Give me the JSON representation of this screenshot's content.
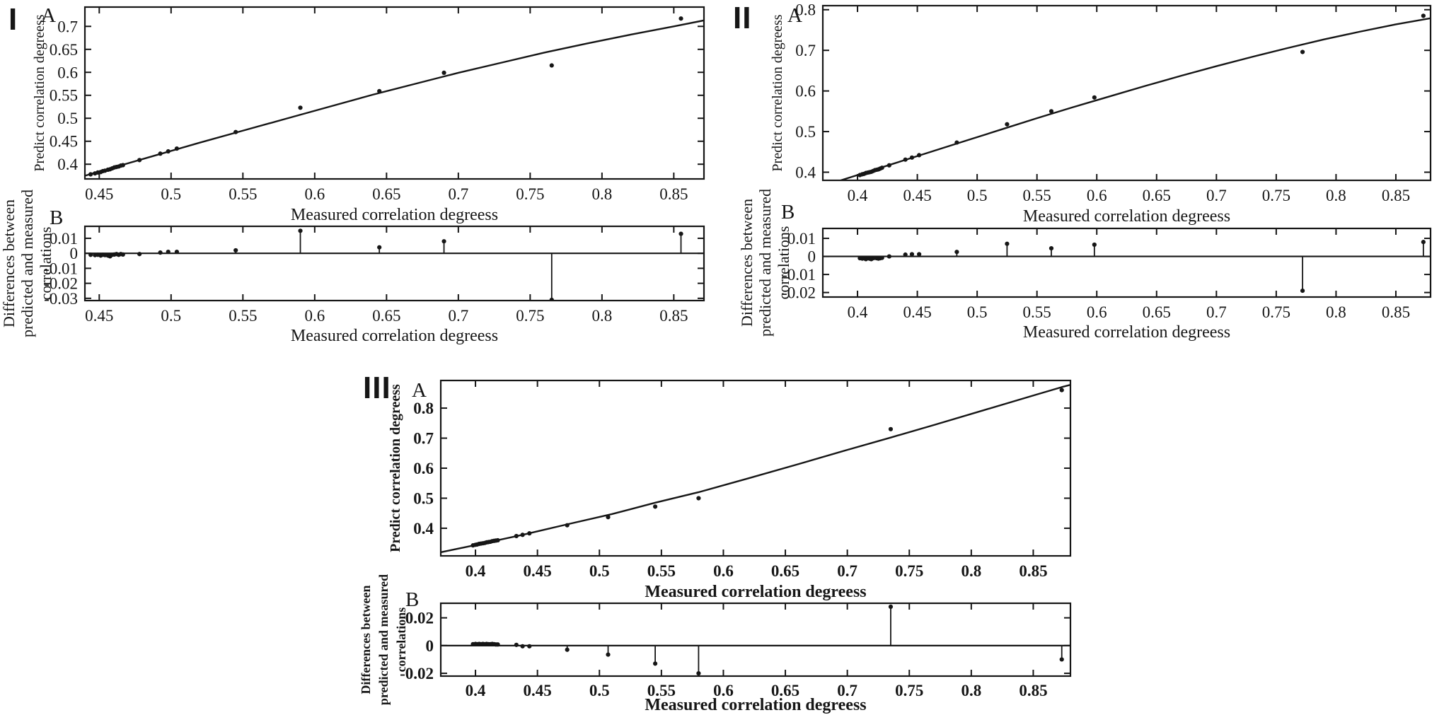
{
  "colors": {
    "background": "#ffffff",
    "ink": "#161616"
  },
  "panels": [
    {
      "numeral": "I",
      "subpanels": [
        {
          "label": "A"
        },
        {
          "label": "B"
        }
      ]
    },
    {
      "numeral": "II",
      "subpanels": [
        {
          "label": "A"
        },
        {
          "label": "B"
        }
      ]
    },
    {
      "numeral": "III",
      "subpanels": [
        {
          "label": "A"
        },
        {
          "label": "B"
        }
      ]
    }
  ],
  "chart_data": [
    {
      "panel": "I",
      "subpanel": "A",
      "type": "scatter",
      "render": "scatter_line",
      "title": "",
      "xlabel": "Measured correlation degreess",
      "ylabel": "Predict correlation degreess",
      "xlim": [
        0.44,
        0.871
      ],
      "ylim": [
        0.368,
        0.742
      ],
      "xticks": [
        0.45,
        0.5,
        0.55,
        0.6,
        0.65,
        0.7,
        0.75,
        0.8,
        0.85
      ],
      "yticks": [
        0.4,
        0.45,
        0.5,
        0.55,
        0.6,
        0.65,
        0.7
      ],
      "grid": false,
      "legend": "none",
      "fit_curve": [
        [
          0.44,
          0.375
        ],
        [
          0.46,
          0.393
        ],
        [
          0.49,
          0.42
        ],
        [
          0.52,
          0.447
        ],
        [
          0.55,
          0.473
        ],
        [
          0.58,
          0.499
        ],
        [
          0.61,
          0.525
        ],
        [
          0.64,
          0.551
        ],
        [
          0.67,
          0.575
        ],
        [
          0.7,
          0.599
        ],
        [
          0.73,
          0.621
        ],
        [
          0.76,
          0.643
        ],
        [
          0.79,
          0.663
        ],
        [
          0.82,
          0.682
        ],
        [
          0.85,
          0.7
        ],
        [
          0.871,
          0.713
        ]
      ],
      "points": [
        [
          0.444,
          0.378
        ],
        [
          0.447,
          0.38
        ],
        [
          0.449,
          0.382
        ],
        [
          0.451,
          0.383
        ],
        [
          0.4525,
          0.385
        ],
        [
          0.454,
          0.386
        ],
        [
          0.456,
          0.388
        ],
        [
          0.4575,
          0.389
        ],
        [
          0.459,
          0.391
        ],
        [
          0.4605,
          0.393
        ],
        [
          0.462,
          0.394
        ],
        [
          0.4635,
          0.395
        ],
        [
          0.465,
          0.397
        ],
        [
          0.4665,
          0.398
        ],
        [
          0.478,
          0.409
        ],
        [
          0.4925,
          0.423
        ],
        [
          0.498,
          0.428
        ],
        [
          0.504,
          0.434
        ],
        [
          0.545,
          0.47
        ],
        [
          0.59,
          0.523
        ],
        [
          0.645,
          0.559
        ],
        [
          0.69,
          0.599
        ],
        [
          0.765,
          0.615
        ],
        [
          0.855,
          0.717
        ]
      ]
    },
    {
      "panel": "I",
      "subpanel": "B",
      "type": "scatter",
      "render": "stem",
      "title": "",
      "xlabel": "Measured correlation degreess",
      "ylabel_lines": [
        "Differences between",
        "predicted and measured",
        "correlations"
      ],
      "xlim": [
        0.44,
        0.871
      ],
      "ylim": [
        -0.0315,
        0.018
      ],
      "xticks": [
        0.45,
        0.5,
        0.55,
        0.6,
        0.65,
        0.7,
        0.75,
        0.8,
        0.85
      ],
      "yticks": [
        0.01,
        0,
        -0.01,
        -0.02,
        -0.03
      ],
      "grid": false,
      "legend": "none",
      "points": [
        [
          0.444,
          -0.001
        ],
        [
          0.447,
          -0.0012
        ],
        [
          0.449,
          -0.001
        ],
        [
          0.451,
          -0.0015
        ],
        [
          0.4525,
          -0.001
        ],
        [
          0.454,
          -0.0012
        ],
        [
          0.456,
          -0.0015
        ],
        [
          0.4575,
          -0.002
        ],
        [
          0.459,
          -0.001
        ],
        [
          0.4605,
          -0.0008
        ],
        [
          0.462,
          -0.0005
        ],
        [
          0.4635,
          -0.001
        ],
        [
          0.465,
          -0.0005
        ],
        [
          0.4665,
          -0.0008
        ],
        [
          0.478,
          -0.0005
        ],
        [
          0.4925,
          0.0005
        ],
        [
          0.498,
          0.001
        ],
        [
          0.504,
          0.001
        ],
        [
          0.545,
          0.002
        ],
        [
          0.59,
          0.015
        ],
        [
          0.645,
          0.004
        ],
        [
          0.69,
          0.008
        ],
        [
          0.765,
          -0.031
        ],
        [
          0.855,
          0.013
        ]
      ]
    },
    {
      "panel": "II",
      "subpanel": "A",
      "type": "scatter",
      "render": "scatter_line",
      "title": "",
      "xlabel": "Measured correlation degreess",
      "ylabel": "Predict correlation degreess",
      "xlim": [
        0.371,
        0.879
      ],
      "ylim": [
        0.38,
        0.81
      ],
      "xticks": [
        0.4,
        0.45,
        0.5,
        0.55,
        0.6,
        0.65,
        0.7,
        0.75,
        0.8,
        0.85
      ],
      "yticks": [
        0.4,
        0.5,
        0.6,
        0.7,
        0.8
      ],
      "grid": false,
      "legend": "none",
      "fit_curve": [
        [
          0.371,
          0.366
        ],
        [
          0.4,
          0.393
        ],
        [
          0.43,
          0.421
        ],
        [
          0.46,
          0.449
        ],
        [
          0.49,
          0.477
        ],
        [
          0.52,
          0.505
        ],
        [
          0.55,
          0.533
        ],
        [
          0.58,
          0.56
        ],
        [
          0.61,
          0.586
        ],
        [
          0.64,
          0.612
        ],
        [
          0.67,
          0.637
        ],
        [
          0.7,
          0.661
        ],
        [
          0.73,
          0.684
        ],
        [
          0.76,
          0.706
        ],
        [
          0.79,
          0.727
        ],
        [
          0.82,
          0.746
        ],
        [
          0.85,
          0.764
        ],
        [
          0.879,
          0.779
        ]
      ],
      "points": [
        [
          0.402,
          0.393
        ],
        [
          0.404,
          0.395
        ],
        [
          0.4055,
          0.396
        ],
        [
          0.407,
          0.398
        ],
        [
          0.4085,
          0.399
        ],
        [
          0.41,
          0.4
        ],
        [
          0.4115,
          0.401
        ],
        [
          0.413,
          0.403
        ],
        [
          0.4145,
          0.405
        ],
        [
          0.416,
          0.406
        ],
        [
          0.4175,
          0.407
        ],
        [
          0.419,
          0.409
        ],
        [
          0.4205,
          0.411
        ],
        [
          0.4265,
          0.417
        ],
        [
          0.44,
          0.431
        ],
        [
          0.4455,
          0.436
        ],
        [
          0.4515,
          0.442
        ],
        [
          0.483,
          0.473
        ],
        [
          0.525,
          0.518
        ],
        [
          0.562,
          0.55
        ],
        [
          0.598,
          0.584
        ],
        [
          0.772,
          0.696
        ],
        [
          0.873,
          0.785
        ]
      ]
    },
    {
      "panel": "II",
      "subpanel": "B",
      "type": "scatter",
      "render": "stem",
      "title": "",
      "xlabel": "Measured correlation degreess",
      "ylabel_lines": [
        "Differences between",
        "predicted and measured",
        "correlations"
      ],
      "xlim": [
        0.371,
        0.879
      ],
      "ylim": [
        -0.0225,
        0.0155
      ],
      "xticks": [
        0.4,
        0.45,
        0.5,
        0.55,
        0.6,
        0.65,
        0.7,
        0.75,
        0.8,
        0.85
      ],
      "yticks": [
        0.01,
        0,
        -0.01,
        -0.02
      ],
      "grid": false,
      "legend": "none",
      "points": [
        [
          0.402,
          -0.001
        ],
        [
          0.404,
          -0.0012
        ],
        [
          0.4055,
          -0.001
        ],
        [
          0.407,
          -0.0015
        ],
        [
          0.4085,
          -0.001
        ],
        [
          0.41,
          -0.0012
        ],
        [
          0.4115,
          -0.0015
        ],
        [
          0.413,
          -0.001
        ],
        [
          0.4145,
          -0.0008
        ],
        [
          0.416,
          -0.001
        ],
        [
          0.4175,
          -0.0012
        ],
        [
          0.419,
          -0.001
        ],
        [
          0.4205,
          -0.0008
        ],
        [
          0.4265,
          0
        ],
        [
          0.44,
          0.001
        ],
        [
          0.4455,
          0.0012
        ],
        [
          0.4515,
          0.0012
        ],
        [
          0.483,
          0.0025
        ],
        [
          0.525,
          0.007
        ],
        [
          0.562,
          0.0045
        ],
        [
          0.598,
          0.0065
        ],
        [
          0.772,
          -0.019
        ],
        [
          0.873,
          0.008
        ]
      ]
    },
    {
      "panel": "III",
      "subpanel": "A",
      "type": "scatter",
      "render": "scatter_line",
      "title": "",
      "xlabel": "Measured correlation degreess",
      "ylabel": "Predict correlation degreess",
      "xlim": [
        0.372,
        0.88
      ],
      "ylim": [
        0.308,
        0.892
      ],
      "xticks": [
        0.4,
        0.45,
        0.5,
        0.55,
        0.6,
        0.65,
        0.7,
        0.75,
        0.8,
        0.85
      ],
      "yticks": [
        0.4,
        0.5,
        0.6,
        0.7,
        0.8
      ],
      "grid": false,
      "legend": "none",
      "fit_curve": [
        [
          0.372,
          0.32
        ],
        [
          0.4,
          0.344
        ],
        [
          0.44,
          0.38
        ],
        [
          0.475,
          0.414
        ],
        [
          0.51,
          0.447
        ],
        [
          0.545,
          0.485
        ],
        [
          0.58,
          0.52
        ],
        [
          0.62,
          0.566
        ],
        [
          0.66,
          0.613
        ],
        [
          0.7,
          0.661
        ],
        [
          0.735,
          0.702
        ],
        [
          0.77,
          0.744
        ],
        [
          0.81,
          0.793
        ],
        [
          0.85,
          0.842
        ],
        [
          0.873,
          0.87
        ],
        [
          0.893,
          0.892
        ]
      ],
      "points": [
        [
          0.398,
          0.343
        ],
        [
          0.4,
          0.345
        ],
        [
          0.4015,
          0.346
        ],
        [
          0.403,
          0.348
        ],
        [
          0.4045,
          0.349
        ],
        [
          0.406,
          0.35
        ],
        [
          0.4075,
          0.351
        ],
        [
          0.409,
          0.353
        ],
        [
          0.4105,
          0.354
        ],
        [
          0.412,
          0.355
        ],
        [
          0.4135,
          0.357
        ],
        [
          0.415,
          0.358
        ],
        [
          0.4165,
          0.359
        ],
        [
          0.418,
          0.36
        ],
        [
          0.433,
          0.374
        ],
        [
          0.438,
          0.378
        ],
        [
          0.4435,
          0.383
        ],
        [
          0.474,
          0.41
        ],
        [
          0.507,
          0.437
        ],
        [
          0.545,
          0.472
        ],
        [
          0.58,
          0.5
        ],
        [
          0.735,
          0.73
        ],
        [
          0.873,
          0.86
        ]
      ]
    },
    {
      "panel": "III",
      "subpanel": "B",
      "type": "scatter",
      "render": "stem",
      "title": "",
      "xlabel": "Measured correlation degreess",
      "ylabel_lines": [
        "Differences between",
        "predicted and measured",
        "correlations"
      ],
      "xlim": [
        0.372,
        0.88
      ],
      "ylim": [
        -0.022,
        0.0305
      ],
      "xticks": [
        0.4,
        0.45,
        0.5,
        0.55,
        0.6,
        0.65,
        0.7,
        0.75,
        0.8,
        0.85
      ],
      "yticks": [
        0.02,
        0,
        -0.02
      ],
      "grid": false,
      "legend": "none",
      "points": [
        [
          0.398,
          0.001
        ],
        [
          0.4,
          0.0012
        ],
        [
          0.4015,
          0.001
        ],
        [
          0.403,
          0.0012
        ],
        [
          0.4045,
          0.001
        ],
        [
          0.406,
          0.0012
        ],
        [
          0.4075,
          0.001
        ],
        [
          0.409,
          0.0012
        ],
        [
          0.4105,
          0.001
        ],
        [
          0.412,
          0.001
        ],
        [
          0.4135,
          0.0012
        ],
        [
          0.415,
          0.001
        ],
        [
          0.4165,
          0.0008
        ],
        [
          0.418,
          0.0008
        ],
        [
          0.433,
          0.0005
        ],
        [
          0.438,
          -0.0005
        ],
        [
          0.4435,
          -0.0005
        ],
        [
          0.474,
          -0.003
        ],
        [
          0.507,
          -0.0065
        ],
        [
          0.545,
          -0.013
        ],
        [
          0.58,
          -0.02
        ],
        [
          0.735,
          0.028
        ],
        [
          0.873,
          -0.01
        ]
      ]
    }
  ]
}
